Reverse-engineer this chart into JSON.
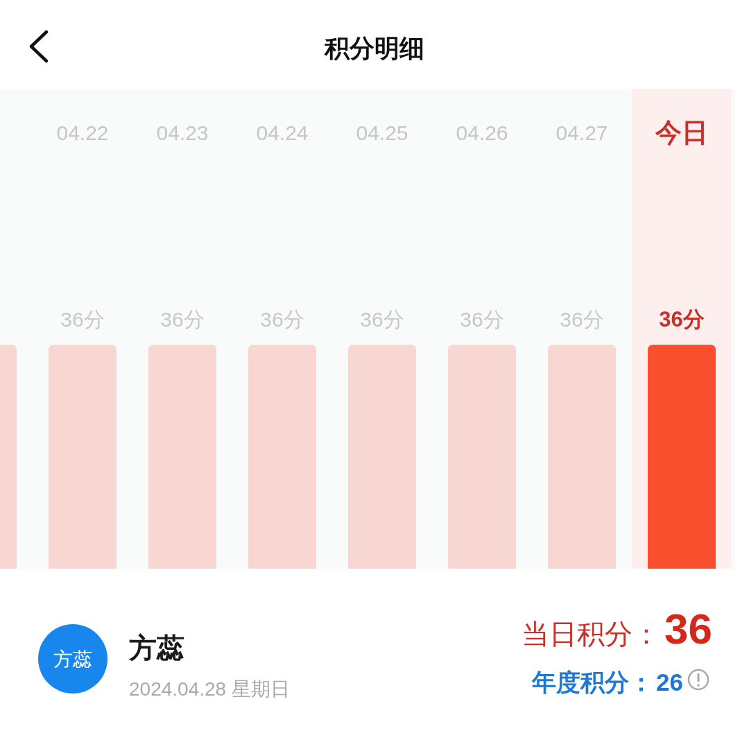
{
  "chart_data": {
    "type": "bar",
    "title": "积分明细",
    "categories": [
      null,
      "04.22",
      "04.23",
      "04.24",
      "04.25",
      "04.26",
      "04.27",
      "今日"
    ],
    "values": [
      36,
      36,
      36,
      36,
      36,
      36,
      36,
      36
    ],
    "colors": [
      "#f8d6d1",
      "#f8d6d1",
      "#f8d6d1",
      "#f8d6d1",
      "#f8d6d1",
      "#f8d6d1",
      "#f8d6d1",
      "#fa4f2f"
    ],
    "value_labels": [
      null,
      "36分",
      "36分",
      "36分",
      "36分",
      "36分",
      "36分",
      "36分"
    ],
    "bands": [
      {
        "axis": "x",
        "from": "今日",
        "to": "今日",
        "color": "#fdefed"
      }
    ],
    "annotations": [
      "方蕊",
      "方蕊",
      "2024.04.28 星期日",
      "当日积分：36",
      "年度积分：26"
    ]
  }
}
